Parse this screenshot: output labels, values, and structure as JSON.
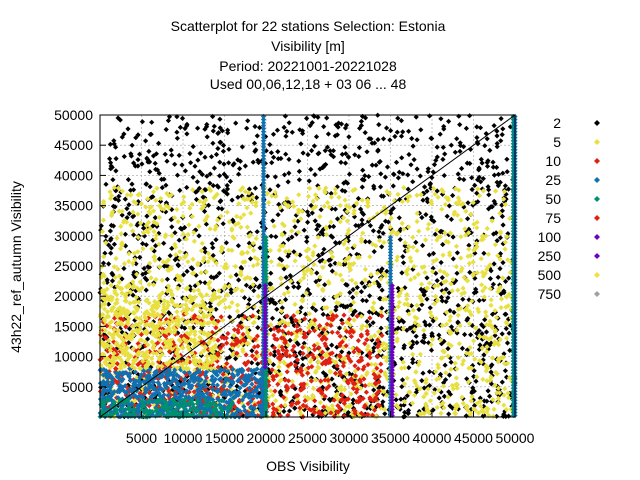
{
  "chart_data": {
    "type": "scatter",
    "title_lines": [
      "Scatterplot for   22 stations Selection: Estonia",
      "Visibility [m]",
      "Period: 20221001-20221028",
      "Used  00,06,12,18  + 03 06 ... 48"
    ],
    "xlabel": "OBS Visibility",
    "ylabel": "43h22_ref_autumn Visibility",
    "xlim": [
      0,
      50000
    ],
    "ylim": [
      0,
      50000
    ],
    "x_ticks": [
      5000,
      10000,
      15000,
      20000,
      25000,
      30000,
      35000,
      40000,
      45000,
      50000
    ],
    "y_ticks": [
      5000,
      10000,
      15000,
      20000,
      25000,
      30000,
      35000,
      40000,
      45000,
      50000
    ],
    "grid": true,
    "diagonal": true,
    "legend_position": "right",
    "legend": [
      {
        "label": "2",
        "color": "#000000"
      },
      {
        "label": "5",
        "color": "#e8e040"
      },
      {
        "label": "10",
        "color": "#e02010"
      },
      {
        "label": "25",
        "color": "#1070b0"
      },
      {
        "label": "50",
        "color": "#009070"
      },
      {
        "label": "75",
        "color": "#e02010"
      },
      {
        "label": "100",
        "color": "#7000c0"
      },
      {
        "label": "250",
        "color": "#7000c0"
      },
      {
        "label": "500",
        "color": "#f0e040"
      },
      {
        "label": "750",
        "color": "#a0a0a0"
      }
    ],
    "clusters": [
      {
        "color": "#000000",
        "x": [
          0,
          50000
        ],
        "y": [
          0,
          50000
        ],
        "count": 1700
      },
      {
        "color": "#e8e040",
        "x": [
          0,
          50000
        ],
        "y": [
          0,
          38000
        ],
        "count": 1500
      },
      {
        "color": "#e02010",
        "x": [
          0,
          34000
        ],
        "y": [
          0,
          17000
        ],
        "count": 700
      },
      {
        "color": "#1070b0",
        "x": [
          0,
          20000
        ],
        "y": [
          0,
          8000
        ],
        "count": 650
      },
      {
        "color": "#009070",
        "x": [
          0,
          16000
        ],
        "y": [
          0,
          3000
        ],
        "count": 150
      },
      {
        "color": "#e8e040",
        "x": [
          0,
          14000
        ],
        "y": [
          8000,
          22000
        ],
        "count": 400
      }
    ],
    "columns": [
      {
        "x": 19700,
        "y": [
          0,
          50000
        ],
        "color": "#1070b0"
      },
      {
        "x": 20000,
        "y": [
          0,
          30000
        ],
        "color": "#009070"
      },
      {
        "x": 19900,
        "y": [
          8000,
          22000
        ],
        "color": "#7000c0"
      },
      {
        "x": 35000,
        "y": [
          0,
          30000
        ],
        "color": "#1070b0"
      },
      {
        "x": 35200,
        "y": [
          0,
          22000
        ],
        "color": "#7000c0"
      },
      {
        "x": 49800,
        "y": [
          0,
          50000
        ],
        "color": "#009070"
      },
      {
        "x": 50000,
        "y": [
          0,
          50000
        ],
        "color": "#1070b0"
      }
    ]
  }
}
